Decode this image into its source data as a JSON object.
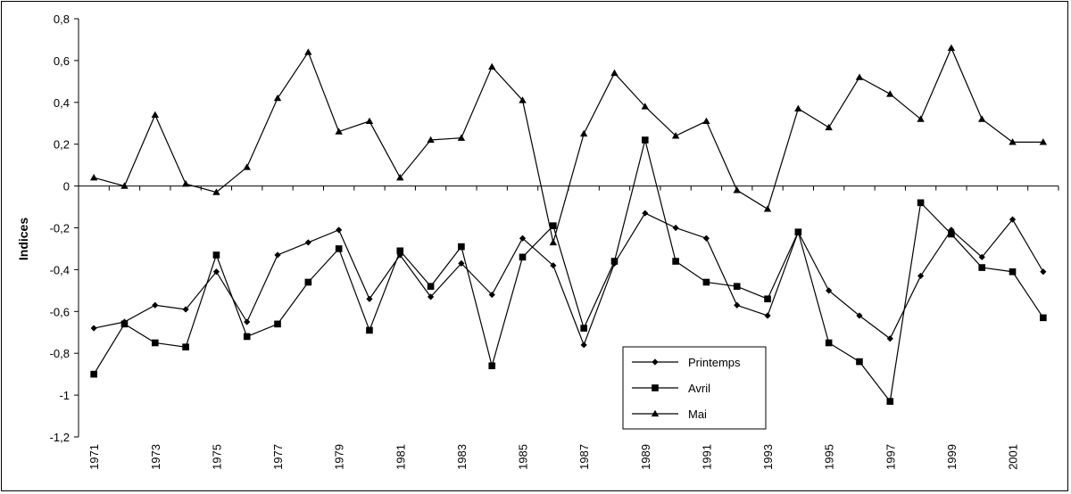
{
  "chart_data": {
    "type": "line",
    "title": "",
    "xlabel": "",
    "ylabel": "Indices",
    "ylim": [
      -1.2,
      0.8
    ],
    "y_ticks": [
      "0,8",
      "0,6",
      "0,4",
      "0,2",
      "0",
      "-0,2",
      "-0,4",
      "-0,6",
      "-0,8",
      "-1",
      "-1,2"
    ],
    "y_tick_values": [
      0.8,
      0.6,
      0.4,
      0.2,
      0,
      -0.2,
      -0.4,
      -0.6,
      -0.8,
      -1,
      -1.2
    ],
    "x": [
      1971,
      1972,
      1973,
      1974,
      1975,
      1976,
      1977,
      1978,
      1979,
      1980,
      1981,
      1982,
      1983,
      1984,
      1985,
      1986,
      1987,
      1988,
      1989,
      1990,
      1991,
      1992,
      1993,
      1994,
      1995,
      1996,
      1997,
      1998,
      1999,
      2000,
      2001,
      2002
    ],
    "x_tick_labels": [
      "1971",
      "1973",
      "1975",
      "1977",
      "1979",
      "1981",
      "1983",
      "1985",
      "1987",
      "1989",
      "1991",
      "1993",
      "1995",
      "1997",
      "1999",
      "2001"
    ],
    "grid": false,
    "legend_position": "bottom-center",
    "series": [
      {
        "name": "Printemps",
        "marker": "diamond",
        "values": [
          -0.68,
          -0.65,
          -0.57,
          -0.59,
          -0.41,
          -0.65,
          -0.33,
          -0.27,
          -0.21,
          -0.54,
          -0.33,
          -0.53,
          -0.37,
          -0.52,
          -0.25,
          -0.38,
          -0.76,
          -0.37,
          -0.13,
          -0.2,
          -0.25,
          -0.57,
          -0.62,
          -0.22,
          -0.5,
          -0.62,
          -0.73,
          -0.43,
          -0.21,
          -0.34,
          -0.16,
          -0.41
        ]
      },
      {
        "name": "Avril",
        "marker": "square",
        "values": [
          -0.9,
          -0.66,
          -0.75,
          -0.77,
          -0.33,
          -0.72,
          -0.66,
          -0.46,
          -0.3,
          -0.69,
          -0.31,
          -0.48,
          -0.29,
          -0.86,
          -0.34,
          -0.19,
          -0.68,
          -0.36,
          0.22,
          -0.36,
          -0.46,
          -0.48,
          -0.54,
          -0.22,
          -0.75,
          -0.84,
          -1.03,
          -0.08,
          -0.23,
          -0.39,
          -0.41,
          -0.63
        ]
      },
      {
        "name": "Mai",
        "marker": "triangle",
        "values": [
          0.04,
          0.0,
          0.34,
          0.01,
          -0.03,
          0.09,
          0.42,
          0.64,
          0.26,
          0.31,
          0.04,
          0.22,
          0.23,
          0.57,
          0.41,
          -0.27,
          0.25,
          0.54,
          0.38,
          0.24,
          0.31,
          -0.02,
          -0.11,
          0.37,
          0.28,
          0.52,
          0.44,
          0.32,
          0.66,
          0.32,
          0.21,
          0.21
        ]
      }
    ]
  },
  "colors": {
    "line": "#000000",
    "background": "#ffffff"
  }
}
